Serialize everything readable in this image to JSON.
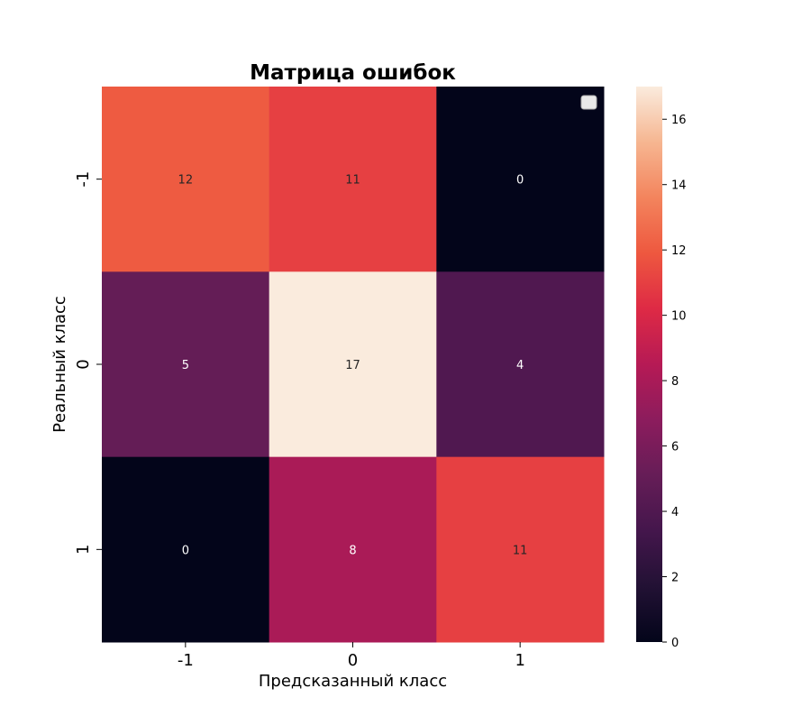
{
  "chart_data": {
    "type": "heatmap",
    "title": "Матрица ошибок",
    "xlabel": "Предсказанный класс",
    "ylabel": "Реальный класс",
    "x_categories": [
      "-1",
      "0",
      "1"
    ],
    "y_categories": [
      "-1",
      "0",
      "1"
    ],
    "values": [
      [
        12,
        11,
        0
      ],
      [
        5,
        17,
        4
      ],
      [
        0,
        8,
        11
      ]
    ],
    "colorbar": {
      "min": 0,
      "max": 17,
      "ticks": [
        0,
        2,
        4,
        6,
        8,
        10,
        12,
        14,
        16
      ],
      "colormap": "rocket"
    },
    "legend": {
      "placement": "upper-right",
      "entries": []
    },
    "grid": false
  }
}
